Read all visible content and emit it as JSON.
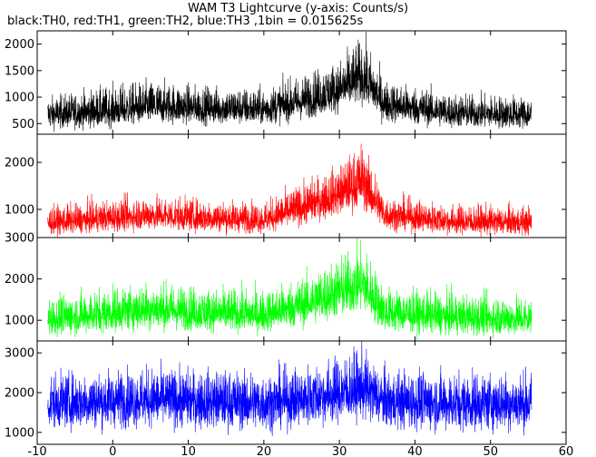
{
  "chart_data": {
    "type": "line",
    "title": "WAM T3 Lightcurve (y-axis: Counts/s)",
    "subtitle": "black:TH0, red:TH1, green:TH2, blue:TH3 ,1bin = 0.015625s",
    "x_ticks": [
      -10,
      0,
      10,
      20,
      30,
      40,
      50,
      60
    ],
    "xlim": [
      -10,
      60
    ],
    "x_range": [
      -8.6,
      55.4
    ],
    "panels": [
      {
        "name": "TH0",
        "color": "#000000",
        "ylim": [
          300,
          2250
        ],
        "y_ticks": [
          500,
          1000,
          1500,
          2000
        ],
        "profile": [
          {
            "x": -8,
            "lo": 380,
            "mean": 650,
            "hi": 1050
          },
          {
            "x": 0,
            "lo": 420,
            "mean": 720,
            "hi": 1250
          },
          {
            "x": 5,
            "lo": 480,
            "mean": 800,
            "hi": 1350
          },
          {
            "x": 12,
            "lo": 470,
            "mean": 770,
            "hi": 1250
          },
          {
            "x": 20,
            "lo": 450,
            "mean": 750,
            "hi": 1200
          },
          {
            "x": 25,
            "lo": 550,
            "mean": 900,
            "hi": 1450
          },
          {
            "x": 30,
            "lo": 700,
            "mean": 1100,
            "hi": 1750
          },
          {
            "x": 33,
            "lo": 850,
            "mean": 1350,
            "hi": 2200
          },
          {
            "x": 36,
            "lo": 500,
            "mean": 850,
            "hi": 1350
          },
          {
            "x": 45,
            "lo": 400,
            "mean": 680,
            "hi": 1100
          },
          {
            "x": 55,
            "lo": 380,
            "mean": 650,
            "hi": 1050
          }
        ]
      },
      {
        "name": "TH1",
        "color": "#ff0000",
        "ylim": [
          400,
          2600
        ],
        "y_ticks": [
          1000,
          2000
        ],
        "profile": [
          {
            "x": -8,
            "lo": 450,
            "mean": 700,
            "hi": 1100
          },
          {
            "x": 5,
            "lo": 550,
            "mean": 850,
            "hi": 1350
          },
          {
            "x": 12,
            "lo": 500,
            "mean": 800,
            "hi": 1250
          },
          {
            "x": 20,
            "lo": 480,
            "mean": 760,
            "hi": 1200
          },
          {
            "x": 25,
            "lo": 650,
            "mean": 1000,
            "hi": 1600
          },
          {
            "x": 30,
            "lo": 850,
            "mean": 1300,
            "hi": 2000
          },
          {
            "x": 33,
            "lo": 1000,
            "mean": 1550,
            "hi": 2500
          },
          {
            "x": 36,
            "lo": 550,
            "mean": 850,
            "hi": 1350
          },
          {
            "x": 45,
            "lo": 450,
            "mean": 720,
            "hi": 1150
          },
          {
            "x": 55,
            "lo": 430,
            "mean": 700,
            "hi": 1100
          }
        ]
      },
      {
        "name": "TH2",
        "color": "#00ff00",
        "ylim": [
          500,
          3000
        ],
        "y_ticks": [
          1000,
          2000,
          3000
        ],
        "profile": [
          {
            "x": -8,
            "lo": 600,
            "mean": 1000,
            "hi": 1650
          },
          {
            "x": 5,
            "lo": 750,
            "mean": 1250,
            "hi": 2000
          },
          {
            "x": 12,
            "lo": 700,
            "mean": 1150,
            "hi": 1850
          },
          {
            "x": 20,
            "lo": 680,
            "mean": 1100,
            "hi": 1800
          },
          {
            "x": 25,
            "lo": 800,
            "mean": 1350,
            "hi": 2100
          },
          {
            "x": 30,
            "lo": 1000,
            "mean": 1650,
            "hi": 2600
          },
          {
            "x": 33,
            "lo": 1150,
            "mean": 1850,
            "hi": 2950
          },
          {
            "x": 36,
            "lo": 700,
            "mean": 1150,
            "hi": 1850
          },
          {
            "x": 45,
            "lo": 620,
            "mean": 1050,
            "hi": 1700
          },
          {
            "x": 55,
            "lo": 600,
            "mean": 1000,
            "hi": 1650
          }
        ]
      },
      {
        "name": "TH3",
        "color": "#0000ff",
        "ylim": [
          700,
          3300
        ],
        "y_ticks": [
          1000,
          2000,
          3000
        ],
        "profile": [
          {
            "x": -8,
            "lo": 1050,
            "mean": 1700,
            "hi": 2550
          },
          {
            "x": 5,
            "lo": 1100,
            "mean": 1800,
            "hi": 2700
          },
          {
            "x": 12,
            "lo": 1050,
            "mean": 1750,
            "hi": 2650
          },
          {
            "x": 20,
            "lo": 1000,
            "mean": 1700,
            "hi": 2600
          },
          {
            "x": 25,
            "lo": 1100,
            "mean": 1800,
            "hi": 2750
          },
          {
            "x": 30,
            "lo": 1200,
            "mean": 1950,
            "hi": 3000
          },
          {
            "x": 33,
            "lo": 1300,
            "mean": 2050,
            "hi": 3200
          },
          {
            "x": 36,
            "lo": 1050,
            "mean": 1750,
            "hi": 2650
          },
          {
            "x": 45,
            "lo": 1000,
            "mean": 1700,
            "hi": 2600
          },
          {
            "x": 55,
            "lo": 1000,
            "mean": 1700,
            "hi": 2600
          }
        ]
      }
    ]
  }
}
